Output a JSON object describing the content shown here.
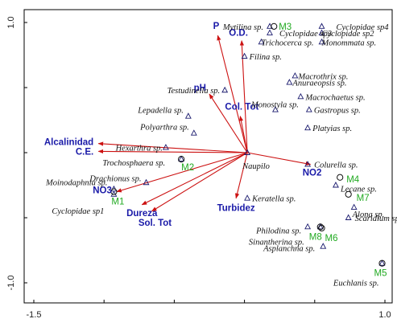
{
  "chart_data": {
    "type": "scatter",
    "title": "",
    "xlabel": "",
    "ylabel": "",
    "xlim": [
      -1.5,
      1.0
    ],
    "ylim": [
      -1.0,
      1.0
    ],
    "x_ticks": [
      {
        "value": -1.5,
        "label": "-1.5"
      },
      {
        "value": 1.0,
        "label": "1.0"
      }
    ],
    "y_ticks": [
      {
        "value": 1.0,
        "label": "1.0"
      },
      {
        "value": -1.0,
        "label": "-1.0"
      }
    ],
    "colors": {
      "species": "#1a1a6e",
      "env": "#cc1111",
      "env_label": "#1a1aa8",
      "site": "#22aa22",
      "axis": "#000000"
    },
    "env_vectors": [
      {
        "name": "P",
        "x": -0.21,
        "y": 0.9
      },
      {
        "name": "O.D.",
        "x": -0.04,
        "y": 0.86
      },
      {
        "name": "pH",
        "x": -0.27,
        "y": 0.45
      },
      {
        "name": "Col. Tot",
        "x": -0.05,
        "y": 0.28
      },
      {
        "name": "Alcalinidad",
        "x": -1.06,
        "y": 0.07
      },
      {
        "name": "C.E.",
        "x": -1.06,
        "y": 0.01
      },
      {
        "name": "NO3",
        "x": -0.93,
        "y": -0.3
      },
      {
        "name": "Dureza",
        "x": -0.75,
        "y": -0.4
      },
      {
        "name": "Sol. Tot",
        "x": -0.68,
        "y": -0.45
      },
      {
        "name": "Turbidez",
        "x": -0.08,
        "y": -0.35
      },
      {
        "name": "NO2",
        "x": 0.45,
        "y": -0.09
      }
    ],
    "species": [
      {
        "name": "Mytilina sp.",
        "x": 0.18,
        "y": 0.97
      },
      {
        "name": "Cyclopidae sp4",
        "x": 0.55,
        "y": 0.97
      },
      {
        "name": "Cyclopidae sp3",
        "x": 0.18,
        "y": 0.92
      },
      {
        "name": "Cyclopidae sp2",
        "x": 0.55,
        "y": 0.92
      },
      {
        "name": "Trichocerca sp.",
        "x": 0.12,
        "y": 0.85
      },
      {
        "name": "Monommata sp.",
        "x": 0.55,
        "y": 0.85
      },
      {
        "name": "Filina sp.",
        "x": 0.0,
        "y": 0.74
      },
      {
        "name": "Macrothrix sp.",
        "x": 0.36,
        "y": 0.59
      },
      {
        "name": "Anuraeopsis sp.",
        "x": 0.32,
        "y": 0.54
      },
      {
        "name": "Testudinella sp.",
        "x": -0.14,
        "y": 0.48
      },
      {
        "name": "Macrochaetus sp.",
        "x": 0.4,
        "y": 0.43
      },
      {
        "name": "Monostyla sp.",
        "x": 0.22,
        "y": 0.33
      },
      {
        "name": "Gastropus sp.",
        "x": 0.46,
        "y": 0.33
      },
      {
        "name": "Lepadella sp.",
        "x": -0.4,
        "y": 0.28
      },
      {
        "name": "Polyarthra sp.",
        "x": -0.36,
        "y": 0.15
      },
      {
        "name": "Platyias sp.",
        "x": 0.45,
        "y": 0.19
      },
      {
        "name": "Hexarthra sp.",
        "x": -0.56,
        "y": 0.04
      },
      {
        "name": "Naupilo",
        "x": 0.02,
        "y": 0.0
      },
      {
        "name": "Colurella sp.",
        "x": 0.45,
        "y": -0.09
      },
      {
        "name": "Trochosphaera sp.",
        "x": -0.45,
        "y": -0.05
      },
      {
        "name": "Drachionus sp.",
        "x": -0.7,
        "y": -0.23
      },
      {
        "name": "Lecane sp.",
        "x": 0.65,
        "y": -0.25
      },
      {
        "name": "Moinodaphnia sp.",
        "x": -0.93,
        "y": -0.28
      },
      {
        "name": "Keratella sp.",
        "x": 0.02,
        "y": -0.35
      },
      {
        "name": "Alona sp.",
        "x": 0.78,
        "y": -0.42
      },
      {
        "name": "Cyclopidae sp1",
        "x": -0.93,
        "y": -0.32
      },
      {
        "name": "Philodina sp.",
        "x": 0.45,
        "y": -0.57
      },
      {
        "name": "Scaridium sp.",
        "x": 0.74,
        "y": -0.5
      },
      {
        "name": "Sinantherina sp.",
        "x": 0.54,
        "y": -0.57
      },
      {
        "name": "Asplanchna sp.",
        "x": 0.56,
        "y": -0.72
      },
      {
        "name": "Euchlanis sp.",
        "x": 0.98,
        "y": -0.85
      }
    ],
    "sites": [
      {
        "name": "M3",
        "x": 0.21,
        "y": 0.97
      },
      {
        "name": "M2",
        "x": -0.45,
        "y": -0.05
      },
      {
        "name": "M1",
        "x": -0.93,
        "y": -0.3
      },
      {
        "name": "M4",
        "x": 0.68,
        "y": -0.19
      },
      {
        "name": "M7",
        "x": 0.74,
        "y": -0.32
      },
      {
        "name": "M8",
        "x": 0.54,
        "y": -0.57
      },
      {
        "name": "M6",
        "x": 0.55,
        "y": -0.58
      },
      {
        "name": "M5",
        "x": 0.98,
        "y": -0.85
      }
    ]
  }
}
